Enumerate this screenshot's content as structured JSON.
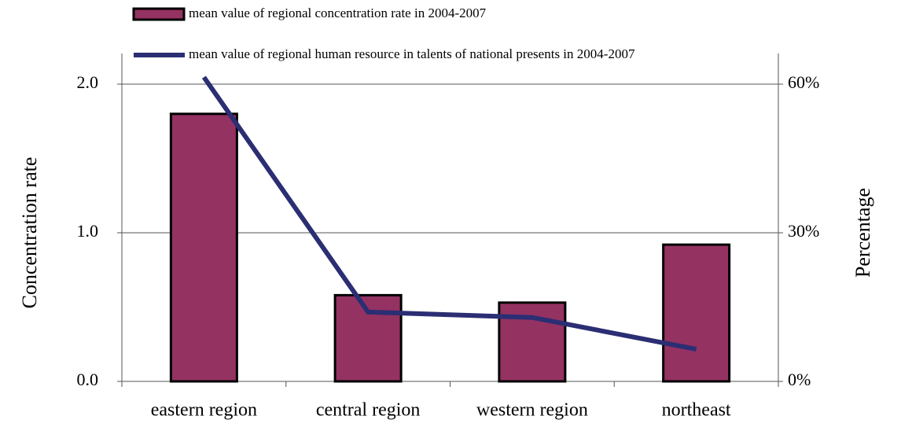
{
  "chart_data": {
    "type": "bar",
    "categories": [
      "eastern region",
      "central region",
      "western region",
      "northeast"
    ],
    "series": [
      {
        "name": "mean value of regional concentration rate in 2004-2007",
        "type": "bar",
        "color": "#943262",
        "values": [
          1.8,
          0.58,
          0.53,
          0.92
        ]
      },
      {
        "name": "mean value of regional human resource in talents of national presents in 2004-2007",
        "type": "line",
        "color": "#2b2e73",
        "axis": "y2",
        "values": [
          61.4,
          14.0,
          12.9,
          6.5
        ]
      }
    ],
    "y_label": "Concentration rate",
    "y2_label": "Percentage",
    "ylim": [
      0,
      2.0
    ],
    "yticks": [
      {
        "value": 0,
        "label": "0.0"
      },
      {
        "value": 1,
        "label": "1.0"
      },
      {
        "value": 2,
        "label": "2.0"
      }
    ],
    "y2lim": [
      0,
      60
    ],
    "y2ticks": [
      {
        "value": 0,
        "label": "0%"
      },
      {
        "value": 30,
        "label": "30%"
      },
      {
        "value": 60,
        "label": "60%"
      }
    ],
    "grid": true
  }
}
